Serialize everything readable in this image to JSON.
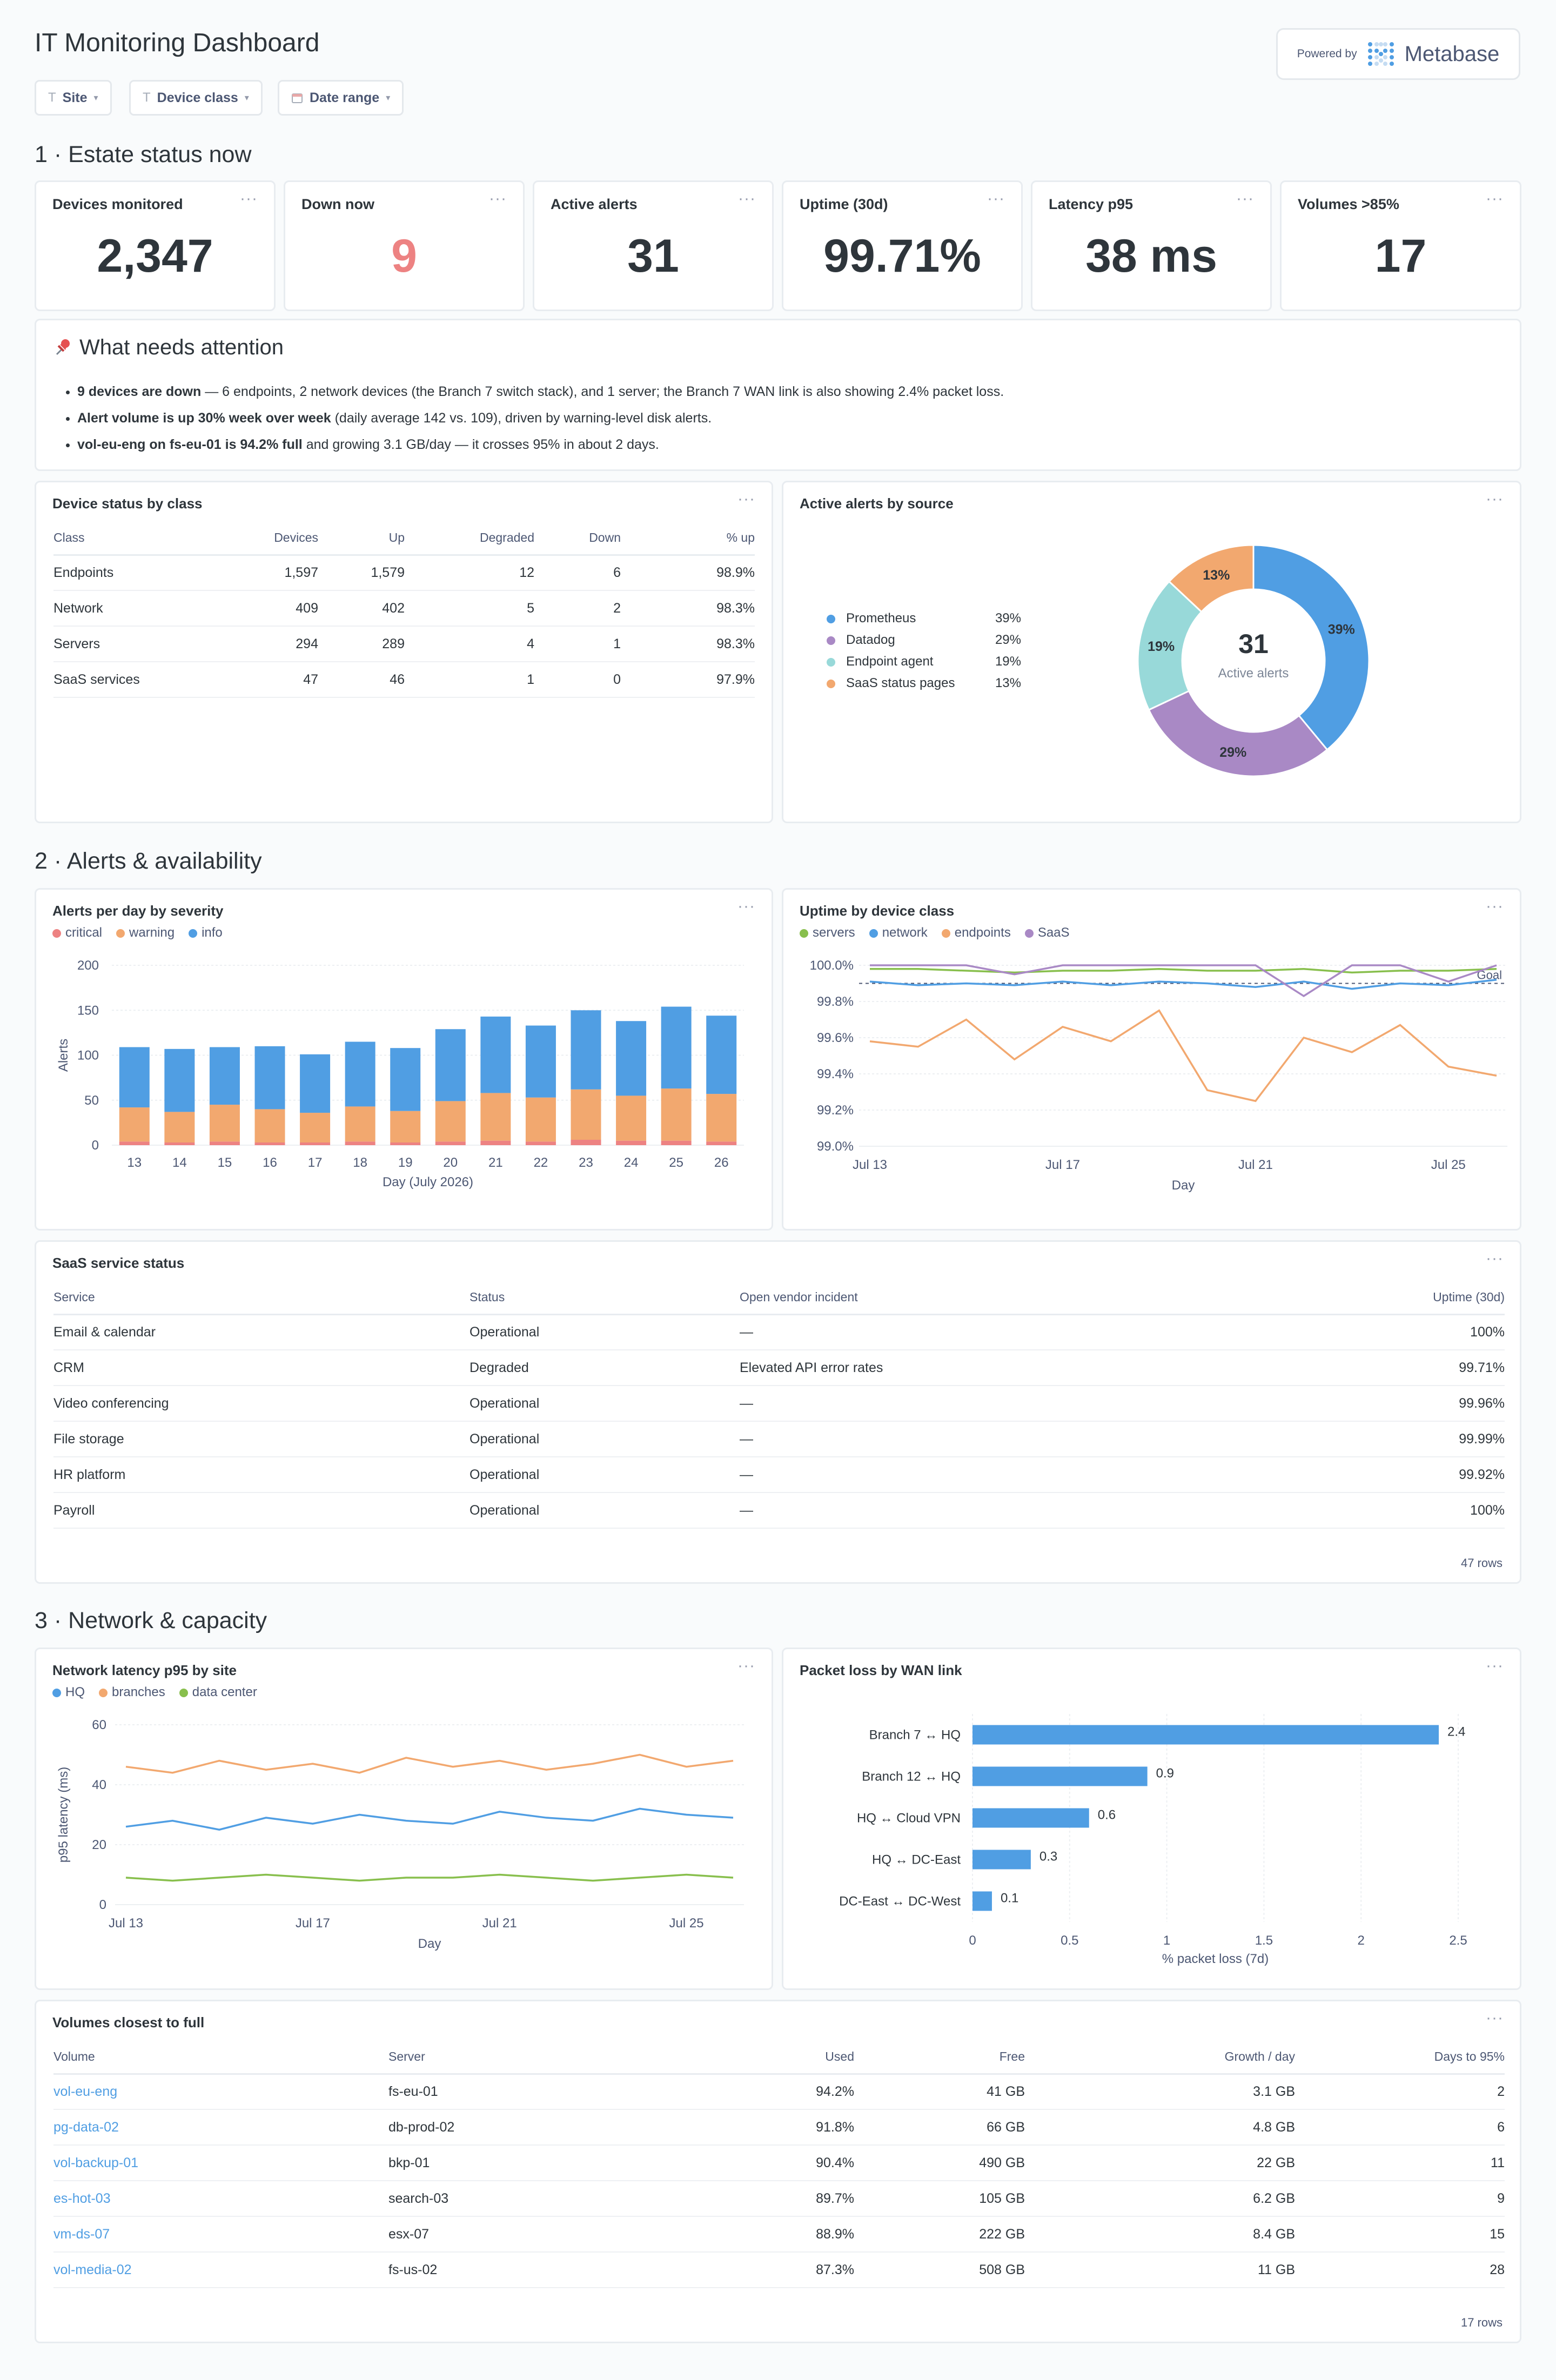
{
  "title": "IT Monitoring Dashboard",
  "powered_by": {
    "label": "Powered by",
    "brand": "Metabase"
  },
  "filters": [
    {
      "label": "Site",
      "icon": "text-icon"
    },
    {
      "label": "Device class",
      "icon": "text-icon"
    },
    {
      "label": "Date range",
      "icon": "calendar-icon"
    }
  ],
  "sections": {
    "s1": "1 · Estate status now",
    "s2": "2 · Alerts & availability",
    "s3": "3 · Network & capacity"
  },
  "kpis": [
    {
      "label": "Devices monitored",
      "value": "2,347",
      "color": "#2e353b"
    },
    {
      "label": "Down now",
      "value": "9",
      "color": "#ed8282"
    },
    {
      "label": "Active alerts",
      "value": "31",
      "color": "#2e353b"
    },
    {
      "label": "Uptime (30d)",
      "value": "99.71%",
      "color": "#2e353b"
    },
    {
      "label": "Latency p95",
      "value": "38 ms",
      "color": "#2e353b"
    },
    {
      "label": "Volumes >85%",
      "value": "17",
      "color": "#2e353b"
    }
  ],
  "attention": {
    "title": "What needs attention",
    "icon": "pushpin-icon",
    "items": [
      {
        "bold": "9 devices are down",
        "rest": " — 6 endpoints, 2 network devices (the Branch 7 switch stack), and 1 server; the Branch 7 WAN link is also showing 2.4% packet loss."
      },
      {
        "bold": "Alert volume is up 30% week over week",
        "rest": " (daily average 142 vs. 109), driven by warning-level disk alerts."
      },
      {
        "bold": "vol-eu-eng on fs-eu-01 is 94.2% full",
        "rest": " and growing 3.1 GB/day — it crosses 95% in about 2 days."
      }
    ]
  },
  "device_status": {
    "title": "Device status by class",
    "columns": [
      "Class",
      "Devices",
      "Up",
      "Degraded",
      "Down",
      "% up"
    ],
    "rows": [
      [
        "Endpoints",
        "1,597",
        "1,579",
        "12",
        "6",
        "98.9%"
      ],
      [
        "Network",
        "409",
        "402",
        "5",
        "2",
        "98.3%"
      ],
      [
        "Servers",
        "294",
        "289",
        "4",
        "1",
        "98.3%"
      ],
      [
        "SaaS services",
        "47",
        "46",
        "1",
        "0",
        "97.9%"
      ]
    ]
  },
  "alerts_by_source": {
    "title": "Active alerts by source",
    "center_value": "31",
    "center_label": "Active alerts",
    "slices": [
      {
        "name": "Prometheus",
        "pct": 39,
        "label": "39%",
        "color": "#509ee3"
      },
      {
        "name": "Datadog",
        "pct": 29,
        "label": "29%",
        "color": "#a989c5"
      },
      {
        "name": "Endpoint agent",
        "pct": 19,
        "label": "19%",
        "color": "#98d9d9"
      },
      {
        "name": "SaaS status pages",
        "pct": 13,
        "label": "13%",
        "color": "#f2a86f"
      }
    ]
  },
  "saas_status": {
    "title": "SaaS service status",
    "columns": [
      "Service",
      "Status",
      "Open vendor incident",
      "Uptime (30d)"
    ],
    "rows": [
      [
        "Email & calendar",
        "Operational",
        "—",
        "100%"
      ],
      [
        "CRM",
        "Degraded",
        "Elevated API error rates",
        "99.71%"
      ],
      [
        "Video conferencing",
        "Operational",
        "—",
        "99.96%"
      ],
      [
        "File storage",
        "Operational",
        "—",
        "99.99%"
      ],
      [
        "HR platform",
        "Operational",
        "—",
        "99.92%"
      ],
      [
        "Payroll",
        "Operational",
        "—",
        "100%"
      ]
    ],
    "footer": "47 rows"
  },
  "volumes": {
    "title": "Volumes closest to full",
    "columns": [
      "Volume",
      "Server",
      "Used",
      "Free",
      "Growth / day",
      "Days to 95%"
    ],
    "rows": [
      [
        "vol-eu-eng",
        "fs-eu-01",
        "94.2%",
        "41 GB",
        "3.1 GB",
        "2"
      ],
      [
        "pg-data-02",
        "db-prod-02",
        "91.8%",
        "66 GB",
        "4.8 GB",
        "6"
      ],
      [
        "vol-backup-01",
        "bkp-01",
        "90.4%",
        "490 GB",
        "22 GB",
        "11"
      ],
      [
        "es-hot-03",
        "search-03",
        "89.7%",
        "105 GB",
        "6.2 GB",
        "9"
      ],
      [
        "vm-ds-07",
        "esx-07",
        "88.9%",
        "222 GB",
        "8.4 GB",
        "15"
      ],
      [
        "vol-media-02",
        "fs-us-02",
        "87.3%",
        "508 GB",
        "11 GB",
        "28"
      ]
    ],
    "footer": "17 rows"
  },
  "chart_data": [
    {
      "id": "alerts_per_day",
      "title": "Alerts per day by severity",
      "type": "bar",
      "stacked": true,
      "xlabel": "Day (July 2026)",
      "ylabel": "Alerts",
      "ylim": [
        0,
        200
      ],
      "yticks": [
        0,
        50,
        100,
        150,
        200
      ],
      "categories": [
        "13",
        "14",
        "15",
        "16",
        "17",
        "18",
        "19",
        "20",
        "21",
        "22",
        "23",
        "24",
        "25",
        "26"
      ],
      "series": [
        {
          "name": "critical",
          "color": "#ed8282",
          "values": [
            4,
            3,
            4,
            3,
            3,
            4,
            3,
            4,
            5,
            4,
            6,
            5,
            5,
            4
          ]
        },
        {
          "name": "warning",
          "color": "#f2a86f",
          "values": [
            38,
            34,
            41,
            37,
            33,
            39,
            35,
            45,
            53,
            49,
            56,
            50,
            58,
            53
          ]
        },
        {
          "name": "info",
          "color": "#509ee3",
          "values": [
            67,
            70,
            64,
            70,
            65,
            72,
            70,
            80,
            85,
            80,
            88,
            83,
            91,
            87
          ]
        }
      ]
    },
    {
      "id": "uptime_by_class",
      "title": "Uptime by device class",
      "type": "line",
      "xlabel": "Day",
      "ylim": [
        99.0,
        100.0
      ],
      "yticks": [
        "100.0%",
        "99.8%",
        "99.6%",
        "99.4%",
        "99.2%",
        "99.0%"
      ],
      "xticks": [
        "Jul 13",
        "Jul 17",
        "Jul 21",
        "Jul 25"
      ],
      "x": [
        "Jul 13",
        "Jul 14",
        "Jul 15",
        "Jul 16",
        "Jul 17",
        "Jul 18",
        "Jul 19",
        "Jul 20",
        "Jul 21",
        "Jul 22",
        "Jul 23",
        "Jul 24",
        "Jul 25",
        "Jul 26"
      ],
      "goal": {
        "label": "Goal",
        "value": 99.9
      },
      "series": [
        {
          "name": "servers",
          "color": "#88bf4d",
          "values": [
            99.98,
            99.98,
            99.97,
            99.96,
            99.97,
            99.97,
            99.98,
            99.97,
            99.97,
            99.98,
            99.96,
            99.97,
            99.97,
            99.98
          ]
        },
        {
          "name": "network",
          "color": "#509ee3",
          "values": [
            99.91,
            99.89,
            99.9,
            99.89,
            99.91,
            99.89,
            99.91,
            99.9,
            99.88,
            99.91,
            99.87,
            99.9,
            99.89,
            99.92
          ]
        },
        {
          "name": "endpoints",
          "color": "#f2a86f",
          "values": [
            99.58,
            99.55,
            99.7,
            99.48,
            99.66,
            99.58,
            99.75,
            99.31,
            99.25,
            99.6,
            99.52,
            99.67,
            99.44,
            99.39
          ]
        },
        {
          "name": "SaaS",
          "color": "#a989c5",
          "values": [
            100.0,
            100.0,
            100.0,
            99.95,
            100.0,
            100.0,
            100.0,
            100.0,
            100.0,
            99.83,
            100.0,
            100.0,
            99.91,
            100.0
          ]
        }
      ]
    },
    {
      "id": "latency_by_site",
      "title": "Network latency p95 by site",
      "type": "line",
      "xlabel": "Day",
      "ylabel": "p95 latency (ms)",
      "ylim": [
        0,
        60
      ],
      "yticks": [
        0,
        20,
        40,
        60
      ],
      "xticks": [
        "Jul 13",
        "Jul 17",
        "Jul 21",
        "Jul 25"
      ],
      "x": [
        "Jul 13",
        "Jul 14",
        "Jul 15",
        "Jul 16",
        "Jul 17",
        "Jul 18",
        "Jul 19",
        "Jul 20",
        "Jul 21",
        "Jul 22",
        "Jul 23",
        "Jul 24",
        "Jul 25",
        "Jul 26"
      ],
      "series": [
        {
          "name": "HQ",
          "color": "#509ee3",
          "values": [
            26,
            28,
            25,
            29,
            27,
            30,
            28,
            27,
            31,
            29,
            28,
            32,
            30,
            29
          ]
        },
        {
          "name": "branches",
          "color": "#f2a86f",
          "values": [
            46,
            44,
            48,
            45,
            47,
            44,
            49,
            46,
            48,
            45,
            47,
            50,
            46,
            48
          ]
        },
        {
          "name": "data center",
          "color": "#88bf4d",
          "values": [
            9,
            8,
            9,
            10,
            9,
            8,
            9,
            9,
            10,
            9,
            8,
            9,
            10,
            9
          ]
        }
      ]
    },
    {
      "id": "packet_loss",
      "title": "Packet loss by WAN link",
      "type": "bar",
      "orientation": "horizontal",
      "xlabel": "% packet loss (7d)",
      "xlim": [
        0,
        2.5
      ],
      "xticks": [
        "0",
        "0.5",
        "1",
        "1.5",
        "2",
        "2.5"
      ],
      "categories": [
        "Branch 7 ↔ HQ",
        "Branch 12 ↔ HQ",
        "HQ ↔ Cloud VPN",
        "HQ ↔ DC-East",
        "DC-East ↔ DC-West"
      ],
      "values": [
        2.4,
        0.9,
        0.6,
        0.3,
        0.1
      ],
      "labels": [
        "2.4",
        "0.9",
        "0.6",
        "0.3",
        "0.1"
      ],
      "color": "#509ee3"
    }
  ]
}
